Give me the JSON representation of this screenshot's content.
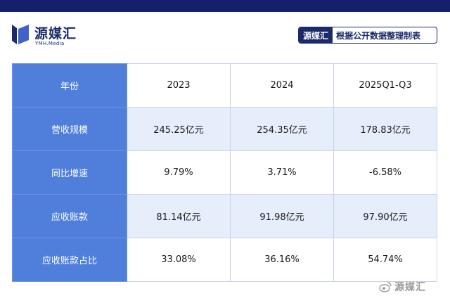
{
  "logo": {
    "text_cn": "源媒汇",
    "text_en": "YMH.Media"
  },
  "badge": {
    "brand": "源媒汇",
    "note": "根据公开数据整理制表"
  },
  "table": {
    "rows": [
      {
        "header": "年份",
        "cells": [
          "2023",
          "2024",
          "2025Q1-Q3"
        ]
      },
      {
        "header": "营收规模",
        "cells": [
          "245.25亿元",
          "254.35亿元",
          "178.83亿元"
        ]
      },
      {
        "header": "同比增速",
        "cells": [
          "9.79%",
          "3.71%",
          "-6.58%"
        ]
      },
      {
        "header": "应收账款",
        "cells": [
          "81.14亿元",
          "91.98亿元",
          "97.90亿元"
        ]
      },
      {
        "header": "应收账款占比",
        "cells": [
          "33.08%",
          "36.16%",
          "54.74%"
        ]
      }
    ]
  },
  "watermark": {
    "text": "源媒汇",
    "icon": "weibo-icon"
  },
  "colors": {
    "navy": "#1b2a6b",
    "header_blue": "#4f7fdb",
    "band_blue": "#e7eefb"
  }
}
